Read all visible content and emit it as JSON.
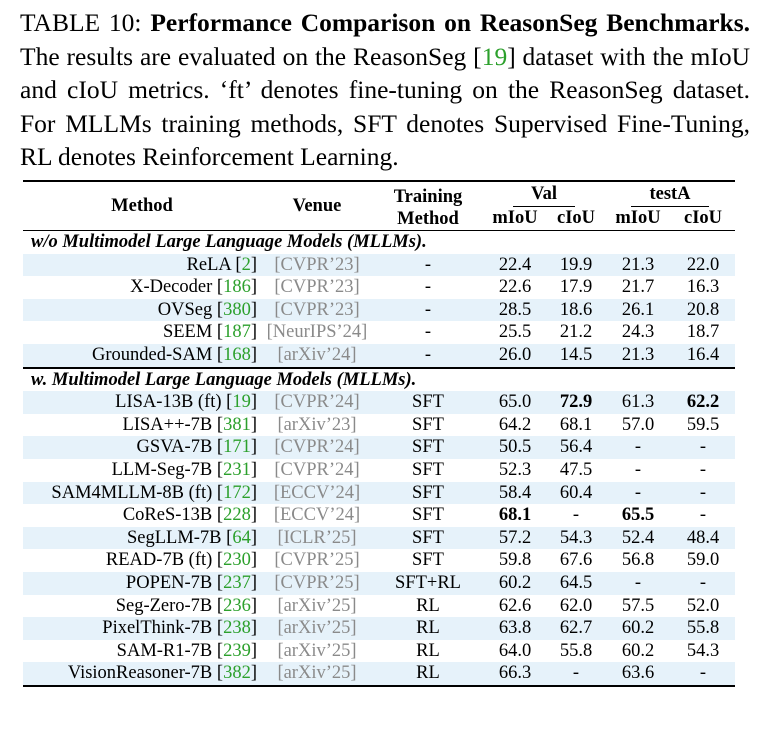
{
  "caption": {
    "label": "TABLE 10:",
    "title": "Performance Comparison on ReasonSeg Benchmarks.",
    "text_before_cite": "The results are evaluated on the ReasonSeg [",
    "cite": "19",
    "text_after_cite": "] dataset with the mIoU and cIoU metrics. ‘ft’ denotes fine-tuning on the ReasonSeg dataset. For MLLMs training methods, SFT denotes Supervised Fine-Tuning, RL denotes Reinforcement Learning."
  },
  "headers": {
    "method": "Method",
    "venue": "Venue",
    "training_line1": "Training",
    "training_line2": "Method",
    "val": "Val",
    "testA": "testA",
    "miou": "mIoU",
    "ciou": "cIoU"
  },
  "sections": [
    {
      "title": "w/o Multimodel Large Language Models (MLLMs).",
      "rows": [
        {
          "name": "ReLA",
          "cite": "2",
          "venue": "[CVPR’23]",
          "train": "-",
          "val_miou": "22.4",
          "val_ciou": "19.9",
          "test_miou": "21.3",
          "test_ciou": "22.0",
          "shade": true
        },
        {
          "name": "X-Decoder",
          "cite": "186",
          "venue": "[CVPR’23]",
          "train": "-",
          "val_miou": "22.6",
          "val_ciou": "17.9",
          "test_miou": "21.7",
          "test_ciou": "16.3",
          "shade": false
        },
        {
          "name": "OVSeg",
          "cite": "380",
          "venue": "[CVPR’23]",
          "train": "-",
          "val_miou": "28.5",
          "val_ciou": "18.6",
          "test_miou": "26.1",
          "test_ciou": "20.8",
          "shade": true
        },
        {
          "name": "SEEM",
          "cite": "187",
          "venue": "[NeurIPS’24]",
          "train": "-",
          "val_miou": "25.5",
          "val_ciou": "21.2",
          "test_miou": "24.3",
          "test_ciou": "18.7",
          "shade": false
        },
        {
          "name": "Grounded-SAM",
          "cite": "168",
          "venue": "[arXiv’24]",
          "train": "-",
          "val_miou": "26.0",
          "val_ciou": "14.5",
          "test_miou": "21.3",
          "test_ciou": "16.4",
          "shade": true
        }
      ]
    },
    {
      "title": "w. Multimodel Large Language Models (MLLMs).",
      "rows": [
        {
          "name": "LISA-13B (ft)",
          "cite": "19",
          "venue": "[CVPR’24]",
          "train": "SFT",
          "val_miou": "65.0",
          "val_ciou": "72.9",
          "test_miou": "61.3",
          "test_ciou": "62.2",
          "shade": true,
          "bold": [
            "val_ciou",
            "test_ciou"
          ]
        },
        {
          "name": "LISA++-7B",
          "cite": "381",
          "venue": "[arXiv’23]",
          "train": "SFT",
          "val_miou": "64.2",
          "val_ciou": "68.1",
          "test_miou": "57.0",
          "test_ciou": "59.5",
          "shade": false
        },
        {
          "name": "GSVA-7B",
          "cite": "171",
          "venue": "[CVPR’24]",
          "train": "SFT",
          "val_miou": "50.5",
          "val_ciou": "56.4",
          "test_miou": "-",
          "test_ciou": "-",
          "shade": true
        },
        {
          "name": "LLM-Seg-7B",
          "cite": "231",
          "venue": "[CVPR’24]",
          "train": "SFT",
          "val_miou": "52.3",
          "val_ciou": "47.5",
          "test_miou": "-",
          "test_ciou": "-",
          "shade": false
        },
        {
          "name": "SAM4MLLM-8B (ft)",
          "cite": "172",
          "venue": "[ECCV’24]",
          "train": "SFT",
          "val_miou": "58.4",
          "val_ciou": "60.4",
          "test_miou": "-",
          "test_ciou": "-",
          "shade": true
        },
        {
          "name": "CoReS-13B",
          "cite": "228",
          "venue": "[ECCV’24]",
          "train": "SFT",
          "val_miou": "68.1",
          "val_ciou": "-",
          "test_miou": "65.5",
          "test_ciou": "-",
          "shade": false,
          "bold": [
            "val_miou",
            "test_miou"
          ]
        },
        {
          "name": "SegLLM-7B",
          "cite": "64",
          "venue": "[ICLR’25]",
          "train": "SFT",
          "val_miou": "57.2",
          "val_ciou": "54.3",
          "test_miou": "52.4",
          "test_ciou": "48.4",
          "shade": true
        },
        {
          "name": "READ-7B (ft)",
          "cite": "230",
          "venue": "[CVPR’25]",
          "train": "SFT",
          "val_miou": "59.8",
          "val_ciou": "67.6",
          "test_miou": "56.8",
          "test_ciou": "59.0",
          "shade": false
        },
        {
          "name": "POPEN-7B",
          "cite": "237",
          "venue": "[CVPR’25]",
          "train": "SFT+RL",
          "val_miou": "60.2",
          "val_ciou": "64.5",
          "test_miou": "-",
          "test_ciou": "-",
          "shade": true
        },
        {
          "name": "Seg-Zero-7B",
          "cite": "236",
          "venue": "[arXiv’25]",
          "train": "RL",
          "val_miou": "62.6",
          "val_ciou": "62.0",
          "test_miou": "57.5",
          "test_ciou": "52.0",
          "shade": false
        },
        {
          "name": "PixelThink-7B",
          "cite": "238",
          "venue": "[arXiv’25]",
          "train": "RL",
          "val_miou": "63.8",
          "val_ciou": "62.7",
          "test_miou": "60.2",
          "test_ciou": "55.8",
          "shade": true
        },
        {
          "name": "SAM-R1-7B",
          "cite": "239",
          "venue": "[arXiv’25]",
          "train": "RL",
          "val_miou": "64.0",
          "val_ciou": "55.8",
          "test_miou": "60.2",
          "test_ciou": "54.3",
          "shade": false
        },
        {
          "name": "VisionReasoner-7B",
          "cite": "382",
          "venue": "[arXiv’25]",
          "train": "RL",
          "val_miou": "66.3",
          "val_ciou": "-",
          "test_miou": "63.6",
          "test_ciou": "-",
          "shade": true
        }
      ]
    }
  ]
}
